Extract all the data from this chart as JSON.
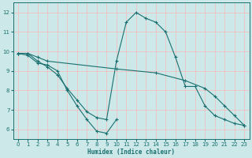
{
  "xlabel": "Humidex (Indice chaleur)",
  "background_color": "#cce8e8",
  "grid_color": "#f0c0c0",
  "line_color": "#1a7070",
  "xlim": [
    -0.5,
    23.5
  ],
  "ylim": [
    5.5,
    12.5
  ],
  "xticks": [
    0,
    1,
    2,
    3,
    4,
    5,
    6,
    7,
    8,
    9,
    10,
    11,
    12,
    13,
    14,
    15,
    16,
    17,
    18,
    19,
    20,
    21,
    22,
    23
  ],
  "yticks": [
    6,
    7,
    8,
    9,
    10,
    11,
    12
  ],
  "series": [
    {
      "x": [
        0,
        1,
        2,
        3,
        4,
        5,
        6,
        7,
        8,
        9,
        10,
        11,
        12,
        13,
        14,
        15,
        16,
        17,
        18,
        19,
        20,
        21,
        22,
        23
      ],
      "y": [
        9.9,
        9.9,
        9.5,
        9.2,
        8.8,
        8.1,
        7.5,
        6.9,
        6.6,
        6.5,
        9.5,
        11.5,
        12.0,
        11.7,
        11.5,
        11.0,
        9.7,
        8.2,
        8.2,
        7.2,
        6.7,
        6.5,
        6.3,
        6.2
      ]
    },
    {
      "x": [
        0,
        1,
        2,
        3,
        10,
        14,
        17,
        19,
        20,
        21,
        22,
        23
      ],
      "y": [
        9.9,
        9.9,
        9.7,
        9.5,
        9.1,
        8.9,
        8.5,
        8.1,
        7.7,
        7.2,
        6.7,
        6.2
      ]
    },
    {
      "x": [
        0,
        1,
        2,
        3,
        4,
        5,
        6,
        7,
        8,
        9,
        10
      ],
      "y": [
        9.9,
        9.8,
        9.4,
        9.3,
        9.0,
        8.0,
        7.2,
        6.5,
        5.9,
        5.8,
        6.5
      ]
    }
  ]
}
